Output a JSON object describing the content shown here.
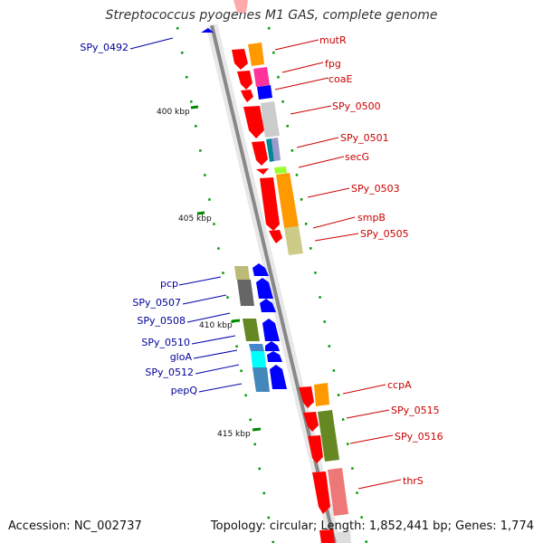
{
  "title": "Streptococcus pyogenes M1 GAS, complete genome",
  "accession": "Accession: NC_002737",
  "genome_stats": "Topology: circular; Length: 1,852,441 bp; Genes: 1,774",
  "colors": {
    "backbone": "#888888",
    "red_genes": "#ff0000",
    "blue_genes": "#0000ff",
    "red_label": "#cc0000",
    "blue_label": "#000099",
    "tick": "#008800"
  },
  "ticks": [
    {
      "label": "400 kbp"
    },
    {
      "label": "405 kbp"
    },
    {
      "label": "410 kbp"
    },
    {
      "label": "415 kbp"
    }
  ],
  "labels_right": [
    {
      "text": "mutR"
    },
    {
      "text": "fpg"
    },
    {
      "text": "coaE"
    },
    {
      "text": "SPy_0500"
    },
    {
      "text": "SPy_0501"
    },
    {
      "text": "secG"
    },
    {
      "text": "SPy_0503"
    },
    {
      "text": "smpB"
    },
    {
      "text": "SPy_0505"
    },
    {
      "text": "ccpA"
    },
    {
      "text": "SPy_0515"
    },
    {
      "text": "SPy_0516"
    },
    {
      "text": "thrS"
    }
  ],
  "labels_left": [
    {
      "text": "SPy_0492"
    },
    {
      "text": "pcp"
    },
    {
      "text": "SPy_0507"
    },
    {
      "text": "SPy_0508"
    },
    {
      "text": "SPy_0510"
    },
    {
      "text": "gloA"
    },
    {
      "text": "SPy_0512"
    },
    {
      "text": "pepQ"
    }
  ]
}
